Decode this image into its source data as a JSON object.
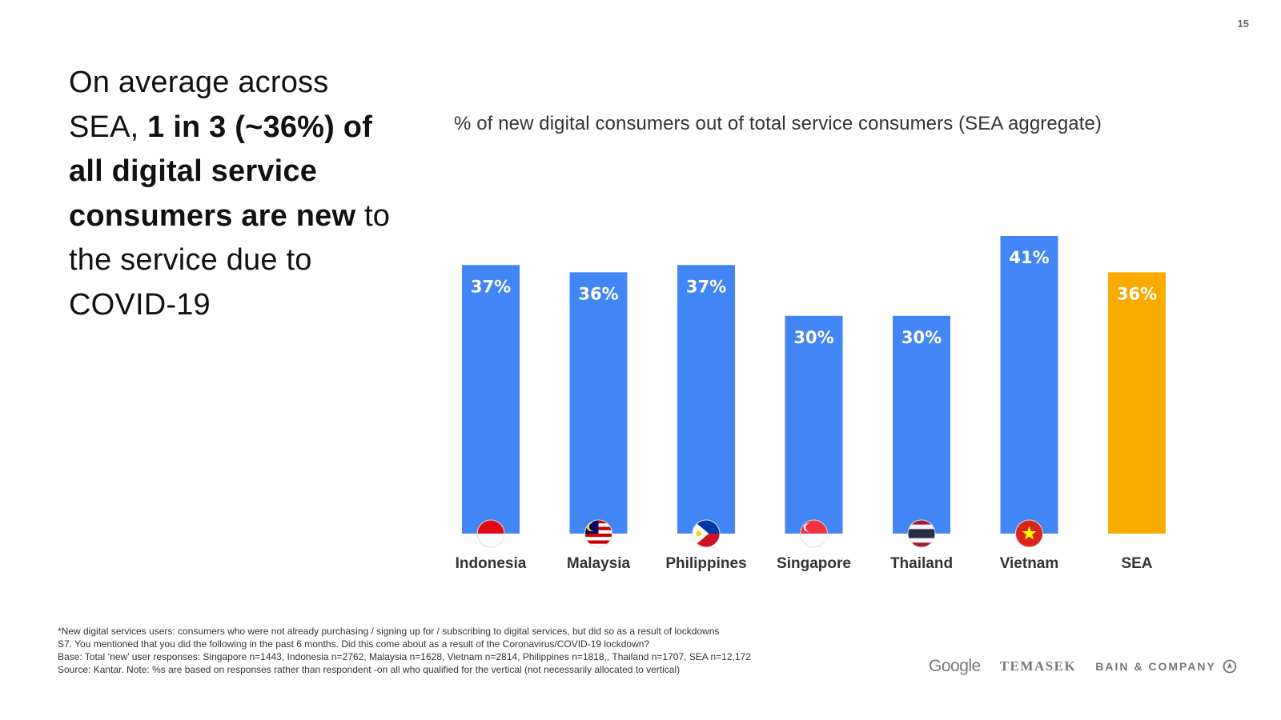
{
  "page": {
    "number": "15"
  },
  "headline": {
    "part1": "On average across SEA, ",
    "bold": "1 in 3 (~36%) of all digital service consumers are new",
    "part2": " to the service due to COVID-19"
  },
  "chart_data": {
    "type": "bar",
    "title": "% of new digital consumers out of total service consumers (SEA aggregate)",
    "categories": [
      "Indonesia",
      "Malaysia",
      "Philippines",
      "Singapore",
      "Thailand",
      "Vietnam",
      "SEA"
    ],
    "values": [
      37,
      36,
      37,
      30,
      30,
      41,
      36
    ],
    "value_labels": [
      "37%",
      "36%",
      "37%",
      "30%",
      "30%",
      "41%",
      "36%"
    ],
    "xlabel": "",
    "ylabel": "",
    "ylim": [
      0,
      41
    ],
    "grid": false,
    "colors": {
      "default": "#4285F4",
      "highlight": "#F9AB00"
    },
    "highlight_category": "SEA",
    "flags": [
      "indonesia-flag",
      "malaysia-flag",
      "philippines-flag",
      "singapore-flag",
      "thailand-flag",
      "vietnam-flag",
      null
    ]
  },
  "notes": [
    "*New digital services users: consumers who were not already purchasing / signing up for / subscribing to digital services, but did so as a result of lockdowns",
    "S7. You mentioned that you did the following in the past 6 months. Did this come about as a result of the Coronavirus/COVID-19 lockdown?",
    "Base: Total ‘new’ user responses: Singapore n=1443, Indonesia n=2762, Malaysia n=1628, Vietnam n=2814, Philippines n=1818,, Thailand n=1707, SEA n=12,172",
    "Source: Kantar. Note: %s are based on responses rather than respondent -on all who qualified for the vertical (not necessarily allocated to vertical)"
  ],
  "logos": {
    "google": "Google",
    "temasek": "TEMASEK",
    "bain": "BAIN & COMPANY"
  }
}
